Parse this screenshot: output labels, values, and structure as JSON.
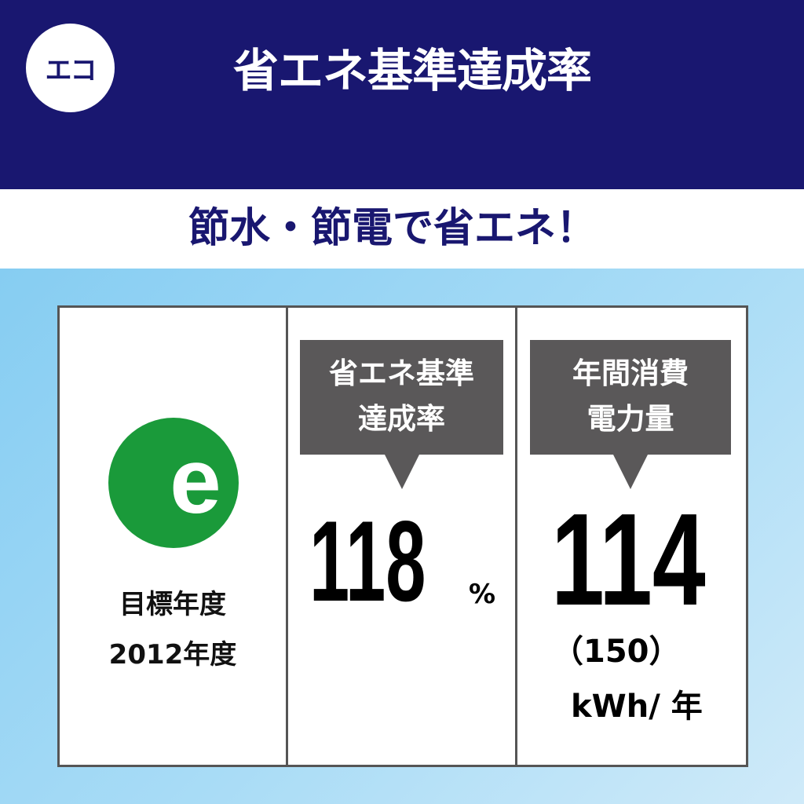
{
  "header": {
    "badge": "エコ",
    "title": "省エネ基準達成率",
    "background": "#191770"
  },
  "subtitle": "節水・節電で省エネ！",
  "panel_target": {
    "logo_letter": "e",
    "logo_color": "#1a9a3a",
    "label": "目標年度",
    "year": "2012年度"
  },
  "panel_rate": {
    "label": "省エネ基準\n達成率",
    "label_line1": "省エネ基準",
    "label_line2": "達成率",
    "value": "118",
    "unit": "%"
  },
  "panel_power": {
    "label_line1": "年間消費",
    "label_line2": "電力量",
    "value": "114",
    "reference": "（150）",
    "unit": "kWh/ 年"
  }
}
